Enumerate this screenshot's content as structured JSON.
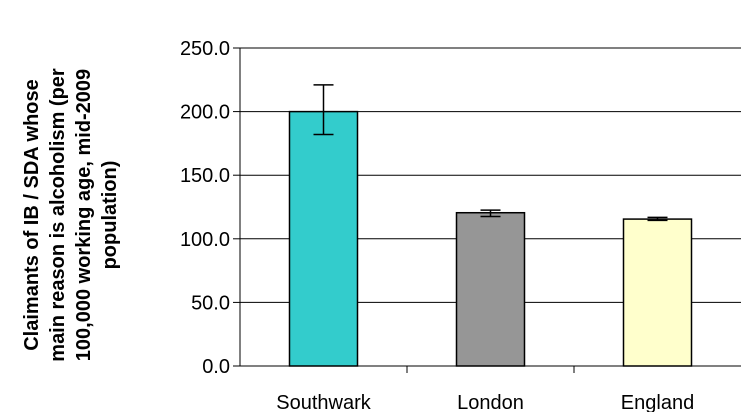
{
  "chart_data": {
    "type": "bar",
    "title": "",
    "xlabel": "",
    "ylabel_lines": [
      "Claimants of IB / SDA whose",
      "main reason is alcoholism (per",
      "100,000 working age, mid-2009",
      "population)"
    ],
    "categories": [
      "Southwark",
      "London",
      "England"
    ],
    "values": [
      200.0,
      120.5,
      115.5
    ],
    "error_low": [
      182.0,
      117.5,
      114.5
    ],
    "error_high": [
      221.0,
      122.5,
      116.8
    ],
    "colors": [
      "#33cccc",
      "#969696",
      "#ffffcc"
    ],
    "ylim": [
      0,
      250
    ],
    "yticks": [
      0,
      50,
      100,
      150,
      200,
      250
    ],
    "ytick_labels": [
      "0.0",
      "50.0",
      "100.0",
      "150.0",
      "200.0",
      "250.0"
    ],
    "grid": true,
    "legend": "none"
  }
}
